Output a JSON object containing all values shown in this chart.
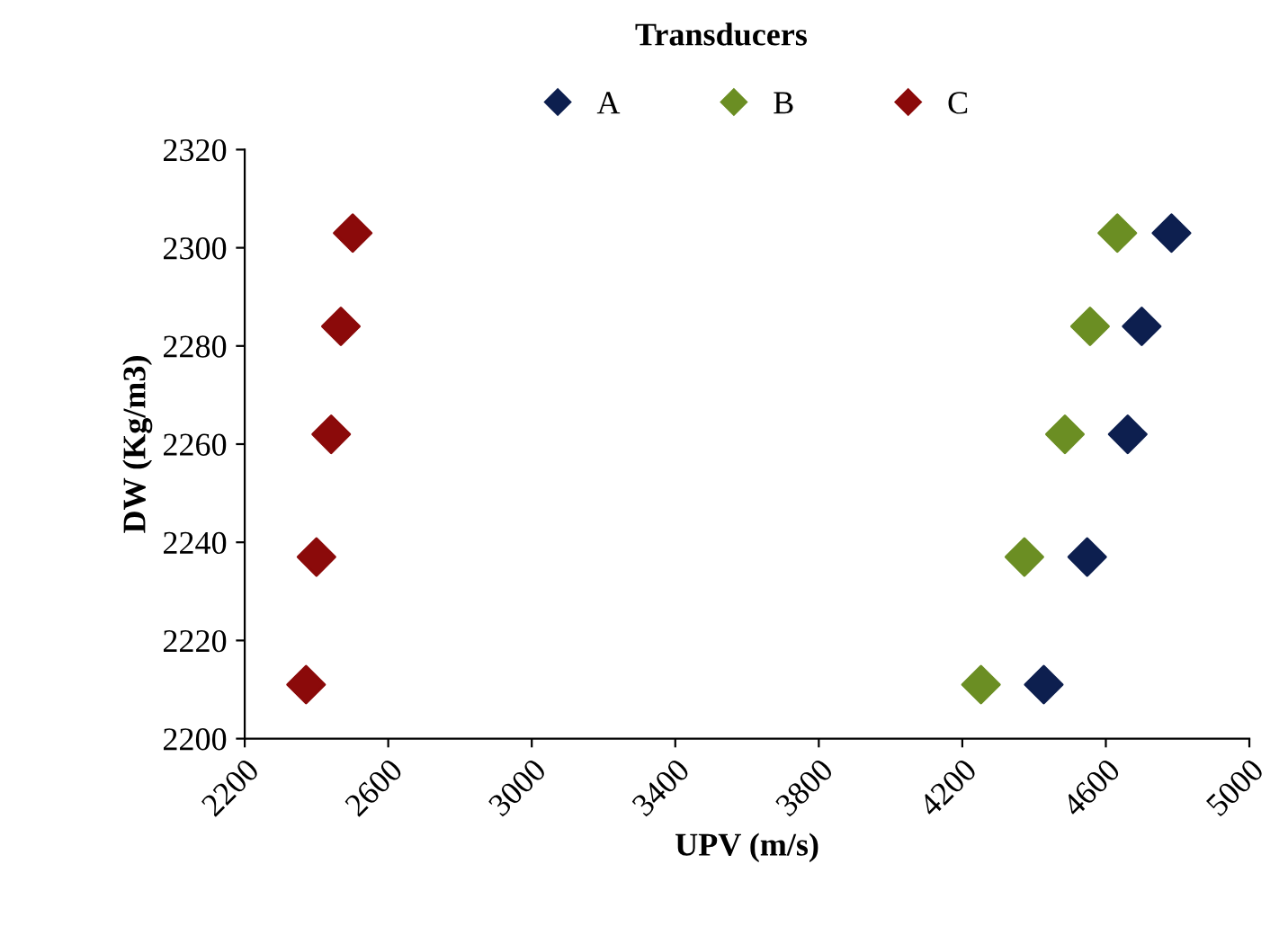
{
  "chart_data": {
    "type": "scatter",
    "title": "Transducers",
    "xlabel": "UPV (m/s)",
    "ylabel": "DW (Kg/m3)",
    "xlim": [
      2200,
      5000
    ],
    "xticks": [
      2200,
      2600,
      3000,
      3400,
      3800,
      4200,
      4600,
      5000
    ],
    "ylim": [
      2200,
      2320
    ],
    "yticks": [
      2200,
      2220,
      2240,
      2260,
      2280,
      2300,
      2320
    ],
    "marker": "diamond",
    "legend": "top",
    "grid": false,
    "series": [
      {
        "name": "A",
        "color": "#0d1f4f",
        "x": [
          4427,
          4548,
          4661,
          4700,
          4783
        ],
        "values": [
          2211,
          2237,
          2262,
          2284,
          2303
        ]
      },
      {
        "name": "B",
        "color": "#6b8e23",
        "x": [
          4252,
          4373,
          4486,
          4556,
          4632
        ],
        "values": [
          2211,
          2237,
          2262,
          2284,
          2303
        ]
      },
      {
        "name": "C",
        "color": "#8b0a0a",
        "x": [
          2371,
          2400,
          2441,
          2468,
          2501
        ],
        "values": [
          2211,
          2237,
          2262,
          2284,
          2303
        ]
      }
    ]
  }
}
